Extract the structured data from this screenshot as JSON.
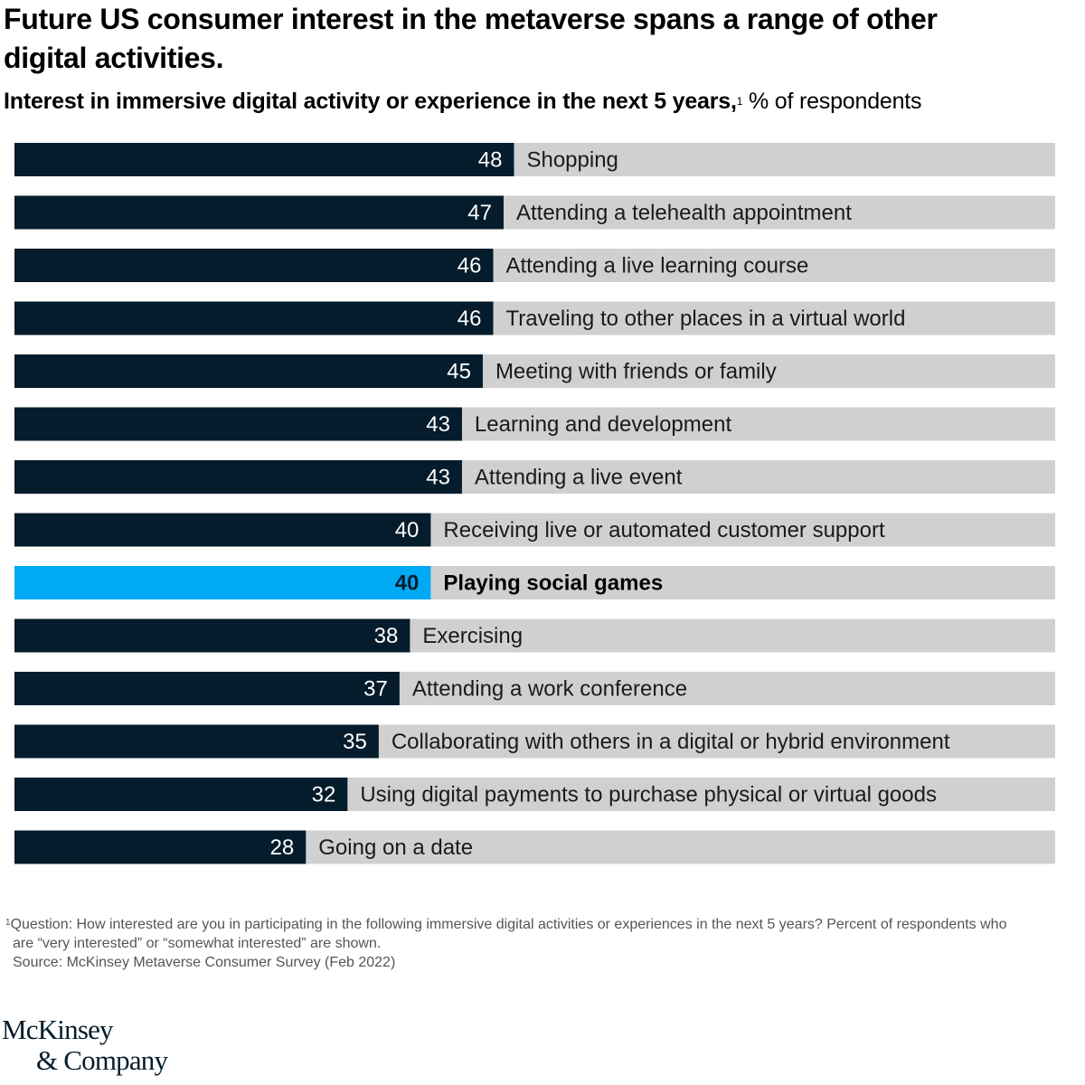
{
  "header": {
    "title": "Future US consumer interest in the metaverse spans a range of other digital activities.",
    "subtitle_bold": "Interest in immersive digital activity or experience in the next 5 years,",
    "subtitle_sup": "1",
    "subtitle_unit": " % of respondents"
  },
  "colors": {
    "bar": "#051c2c",
    "highlight": "#00a9f4",
    "track": "#d0d0d0"
  },
  "chart_data": {
    "type": "bar",
    "orientation": "horizontal",
    "xlim": [
      0,
      100
    ],
    "highlight_category": "Playing social games",
    "categories": [
      "Shopping",
      "Attending a telehealth appointment",
      "Attending a live learning course",
      "Traveling to other places in a virtual world",
      "Meeting with friends or family",
      "Learning and development",
      "Attending a live event",
      "Receiving live or automated customer support",
      "Playing social games",
      "Exercising",
      "Attending a work conference",
      "Collaborating with others in a digital or hybrid environment",
      "Using digital payments to purchase physical or virtual goods",
      "Going on a date"
    ],
    "values": [
      48,
      47,
      46,
      46,
      45,
      43,
      43,
      40,
      40,
      38,
      37,
      35,
      32,
      28
    ]
  },
  "footnote": {
    "marker": "1",
    "text_line1": "Question: How interested are you in participating in the following immersive digital activities or experiences in the next 5 years? Percent of respondents who",
    "text_line2": "are “very interested” or “somewhat interested” are shown."
  },
  "source": "Source: McKinsey Metaverse Consumer Survey (Feb 2022)",
  "logo": {
    "line1": "McKinsey",
    "line2": "& Company"
  }
}
